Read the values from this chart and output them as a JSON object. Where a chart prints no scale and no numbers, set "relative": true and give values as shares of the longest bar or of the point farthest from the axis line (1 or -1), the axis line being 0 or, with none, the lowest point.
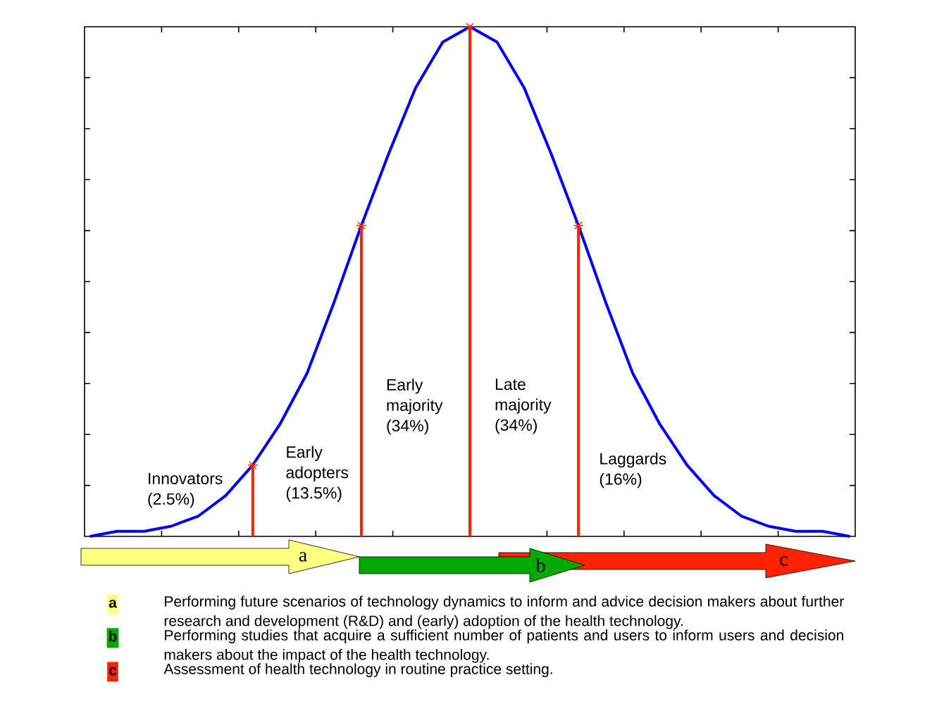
{
  "chart_data": {
    "type": "line",
    "relative": true,
    "categories": [
      null,
      null,
      null,
      null,
      null,
      null,
      null,
      null,
      null,
      null,
      null,
      null,
      null,
      null,
      null,
      null,
      null,
      null,
      null,
      null,
      null,
      null,
      null,
      null,
      null,
      null,
      null,
      null,
      null
    ],
    "series": [
      {
        "color": "#0000ff",
        "values": [
          0,
          0.01,
          0.01,
          0.02,
          0.04,
          0.08,
          0.14,
          0.22,
          0.32,
          0.46,
          0.61,
          0.75,
          0.88,
          0.97,
          1,
          0.97,
          0.88,
          0.75,
          0.61,
          0.46,
          0.32,
          0.22,
          0.14,
          0.08,
          0.04,
          0.02,
          0.01,
          0.01,
          0
        ]
      }
    ],
    "annotations": [
      "Innovators (2.5%)",
      "Early adopters (13.5%)",
      "Early majority (34%)",
      "Late majority (34%)",
      "Laggards (16%)",
      "a",
      "b",
      "c",
      "Performing future scenarios of technology dynamics to inform and advice decision makers about further research and development (R&D) and (early) adoption of the health technology.",
      "Performing studies that acquire a sufficient number of patients and users to inform users and decision makers about the impact of the health technology.",
      "Assessment of health technology in routine practice setting."
    ]
  }
}
